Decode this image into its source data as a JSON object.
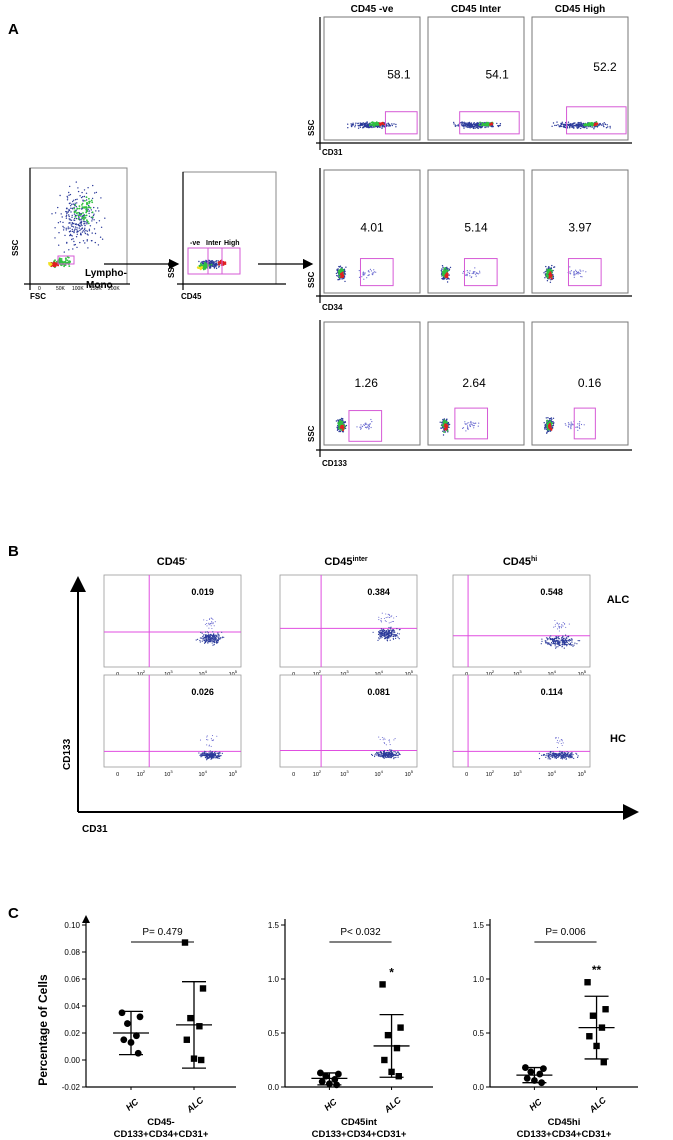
{
  "panel_letters": {
    "a": "A",
    "b": "B",
    "c": "C"
  },
  "panel_a": {
    "column_headers": [
      "CD45 -ve",
      "CD45 Inter",
      "CD45 High"
    ],
    "fsc_plot": {
      "x_label": "FSC",
      "y_label": "SSC",
      "gate_label_line1": "Lympho-",
      "gate_label_line2": "Mono",
      "ticks": [
        "0",
        "50K",
        "100K",
        "150K",
        "200K"
      ]
    },
    "cd45_plot": {
      "x_label": "CD45",
      "y_label": "SSC",
      "gate_labels": [
        "-ve",
        "Inter",
        "High"
      ]
    },
    "rows": [
      {
        "marker": "CD31",
        "y_label": "SSC",
        "values": [
          "58.1",
          "54.1",
          "52.2"
        ]
      },
      {
        "marker": "CD34",
        "y_label": "SSC",
        "values": [
          "4.01",
          "5.14",
          "3.97"
        ]
      },
      {
        "marker": "CD133",
        "y_label": "SSC",
        "values": [
          "1.26",
          "2.64",
          "0.16"
        ]
      }
    ]
  },
  "panel_b": {
    "column_headers": [
      {
        "base": "CD45",
        "sup": "-"
      },
      {
        "base": "CD45",
        "sup": "inter"
      },
      {
        "base": "CD45",
        "sup": "hi"
      }
    ],
    "row_labels": [
      "ALC",
      "HC"
    ],
    "values": [
      [
        "0.019",
        "0.384",
        "0.548"
      ],
      [
        "0.026",
        "0.081",
        "0.114"
      ]
    ],
    "y_axis_label": "CD133",
    "x_axis_label": "CD31",
    "tick_labels": [
      "0",
      "10",
      "10",
      "10",
      "10"
    ],
    "tick_exponents": [
      "",
      "2",
      "3",
      "4",
      "5"
    ]
  },
  "chart_data": [
    {
      "type": "scatter",
      "title": "CD45- CD133+CD34+CD31+",
      "title_line1": "CD45-",
      "title_line2": "CD133+CD34+CD31+",
      "ylabel": "Percentage of Cells",
      "categories": [
        "HC",
        "ALC"
      ],
      "ylim": [
        -0.02,
        0.1
      ],
      "yticks": [
        -0.02,
        0.0,
        0.02,
        0.04,
        0.06,
        0.08,
        0.1
      ],
      "ytick_labels": [
        "-0.02",
        "0.00",
        "0.02",
        "0.04",
        "0.06",
        "0.08",
        "0.10"
      ],
      "p_value": "P= 0.479",
      "significance": [
        "",
        ""
      ],
      "series": [
        {
          "name": "HC",
          "marker": "circle",
          "values": [
            0.035,
            0.032,
            0.027,
            0.018,
            0.015,
            0.013,
            0.005
          ],
          "mean": 0.02,
          "sd_low": 0.004,
          "sd_high": 0.036
        },
        {
          "name": "ALC",
          "marker": "square",
          "values": [
            0.087,
            0.053,
            0.031,
            0.025,
            0.015,
            0.001,
            0.0
          ],
          "mean": 0.026,
          "sd_low": -0.006,
          "sd_high": 0.058
        }
      ]
    },
    {
      "type": "scatter",
      "title": "CD45int CD133+CD34+CD31+",
      "title_line1": "CD45int",
      "title_line2": "CD133+CD34+CD31+",
      "ylabel": "",
      "categories": [
        "HC",
        "ALC"
      ],
      "ylim": [
        0.0,
        1.5
      ],
      "yticks": [
        0.0,
        0.5,
        1.0,
        1.5
      ],
      "ytick_labels": [
        "0.0",
        "0.5",
        "1.0",
        "1.5"
      ],
      "p_value": "P< 0.032",
      "significance": [
        "",
        "*"
      ],
      "series": [
        {
          "name": "HC",
          "marker": "circle",
          "values": [
            0.13,
            0.12,
            0.1,
            0.07,
            0.05,
            0.03,
            0.02
          ],
          "mean": 0.08,
          "sd_low": 0.02,
          "sd_high": 0.13
        },
        {
          "name": "ALC",
          "marker": "square",
          "values": [
            0.95,
            0.55,
            0.48,
            0.36,
            0.25,
            0.14,
            0.1
          ],
          "mean": 0.38,
          "sd_low": 0.09,
          "sd_high": 0.67
        }
      ]
    },
    {
      "type": "scatter",
      "title": "CD45hi CD133+CD34+CD31+",
      "title_line1": "CD45hi",
      "title_line2": "CD133+CD34+CD31+",
      "ylabel": "",
      "categories": [
        "HC",
        "ALC"
      ],
      "ylim": [
        0.0,
        1.5
      ],
      "yticks": [
        0.0,
        0.5,
        1.0,
        1.5
      ],
      "ytick_labels": [
        "0.0",
        "0.5",
        "1.0",
        "1.5"
      ],
      "p_value": "P= 0.006",
      "significance": [
        "",
        "**"
      ],
      "series": [
        {
          "name": "HC",
          "marker": "circle",
          "values": [
            0.18,
            0.17,
            0.14,
            0.12,
            0.08,
            0.06,
            0.04
          ],
          "mean": 0.11,
          "sd_low": 0.04,
          "sd_high": 0.18
        },
        {
          "name": "ALC",
          "marker": "square",
          "values": [
            0.97,
            0.72,
            0.66,
            0.55,
            0.47,
            0.38,
            0.23
          ],
          "mean": 0.55,
          "sd_low": 0.26,
          "sd_high": 0.84
        }
      ]
    }
  ],
  "colors": {
    "gate": "#d65ad6",
    "quadrant": "#e04ee0",
    "dot_blue": "#2b3a9a",
    "heat_green": "#30c040",
    "heat_red": "#e02020",
    "heat_yellow": "#f0e020"
  }
}
